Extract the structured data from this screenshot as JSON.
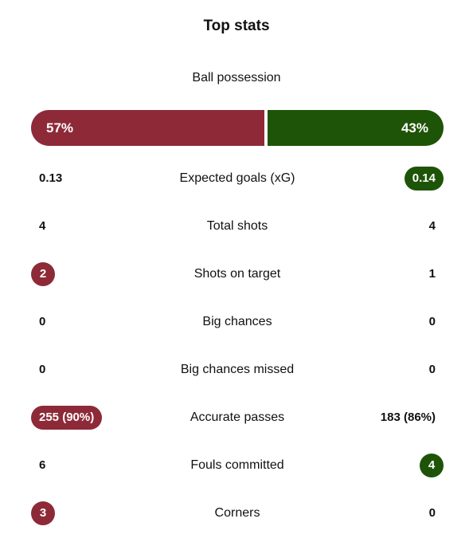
{
  "title": "Top stats",
  "colors": {
    "home": "#8e2a38",
    "away": "#1e5407"
  },
  "possession": {
    "label": "Ball possession",
    "home": "57%",
    "away": "43%",
    "home_share": 57,
    "away_share": 43
  },
  "stats": [
    {
      "name": "Expected goals (xG)",
      "home": "0.13",
      "away": "0.14",
      "highlight": "away"
    },
    {
      "name": "Total shots",
      "home": "4",
      "away": "4",
      "highlight": "none"
    },
    {
      "name": "Shots on target",
      "home": "2",
      "away": "1",
      "highlight": "home"
    },
    {
      "name": "Big chances",
      "home": "0",
      "away": "0",
      "highlight": "none"
    },
    {
      "name": "Big chances missed",
      "home": "0",
      "away": "0",
      "highlight": "none"
    },
    {
      "name": "Accurate passes",
      "home": "255 (90%)",
      "away": "183 (86%)",
      "highlight": "home"
    },
    {
      "name": "Fouls committed",
      "home": "6",
      "away": "4",
      "highlight": "away"
    },
    {
      "name": "Corners",
      "home": "3",
      "away": "0",
      "highlight": "home"
    }
  ]
}
